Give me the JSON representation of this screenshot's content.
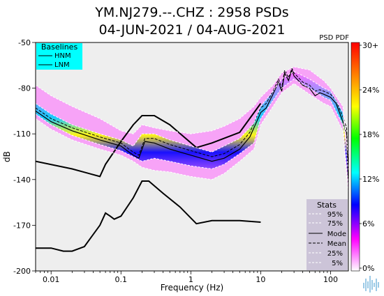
{
  "chart_data": {
    "type": "heatmap",
    "title_line1": "YM.NJ279.--.CHZ : 2958 PSDs",
    "title_line2": "04-JUN-2021 / 04-AUG-2021",
    "xlabel": "Frequency (Hz)",
    "ylabel": "dB",
    "x_scale": "log",
    "xlim": [
      0.006,
      180
    ],
    "ylim": [
      -200,
      -50
    ],
    "x_ticks": [
      0.01,
      0.1,
      1,
      10,
      100
    ],
    "x_tick_labels": [
      "0.01",
      "0.1",
      "1",
      "10",
      "100"
    ],
    "y_ticks": [
      -50,
      -80,
      -110,
      -140,
      -170,
      -200
    ],
    "y_tick_labels": [
      "-50",
      "-80",
      "-110",
      "-140",
      "-170",
      "-200"
    ],
    "psd_pdf_label": "PSD PDF",
    "colorbar": {
      "ticks": [
        "30+",
        "24%",
        "18%",
        "12%",
        "6%",
        "0%"
      ],
      "colors": [
        "#ff0000",
        "#ff7f00",
        "#ffff00",
        "#00ff00",
        "#00ffff",
        "#0000ff",
        "#ff00ff",
        "#ffffff"
      ]
    },
    "baselines": {
      "title": "Baselines",
      "items": [
        "HNM",
        "LNM"
      ]
    },
    "stats": {
      "title": "Stats",
      "items": [
        "95%",
        "75%",
        "Mode",
        "Mean",
        "25%",
        "5%"
      ]
    },
    "series": [
      {
        "name": "HNM",
        "x": [
          0.006,
          0.02,
          0.05,
          0.06,
          0.1,
          0.15,
          0.2,
          0.3,
          0.5,
          1.2,
          2.0,
          5.0,
          10.0
        ],
        "y": [
          -128,
          -133,
          -138,
          -130,
          -115,
          -104,
          -98,
          -98,
          -104,
          -119,
          -116,
          -109,
          -90
        ]
      },
      {
        "name": "LNM",
        "x": [
          0.006,
          0.01,
          0.015,
          0.02,
          0.03,
          0.05,
          0.06,
          0.07,
          0.08,
          0.1,
          0.15,
          0.2,
          0.25,
          0.4,
          0.7,
          1.2,
          2.0,
          5.0,
          10.0
        ],
        "y": [
          -185,
          -185,
          -187,
          -187,
          -184,
          -170,
          -162,
          -164,
          -166,
          -164,
          -152,
          -141,
          -141,
          -149,
          -158,
          -169,
          -167,
          -167,
          -168
        ]
      },
      {
        "name": "Mode",
        "x": [
          0.006,
          0.01,
          0.02,
          0.05,
          0.1,
          0.13,
          0.15,
          0.18,
          0.22,
          0.3,
          0.5,
          1,
          2,
          3,
          5,
          7,
          8,
          10,
          12,
          15,
          18,
          20,
          22,
          25,
          28,
          30,
          40,
          50,
          60,
          70,
          80,
          100,
          120,
          150,
          170,
          180
        ],
        "y": [
          -95,
          -102,
          -108,
          -114,
          -118,
          -122,
          -124,
          -126,
          -115,
          -116,
          -120,
          -124,
          -128,
          -126,
          -120,
          -112,
          -106,
          -96,
          -93,
          -84,
          -76,
          -82,
          -70,
          -75,
          -68,
          -72,
          -78,
          -80,
          -85,
          -83,
          -84,
          -86,
          -90,
          -102,
          -110,
          -143
        ]
      },
      {
        "name": "Mean",
        "x": [
          0.006,
          0.01,
          0.02,
          0.05,
          0.1,
          0.13,
          0.15,
          0.18,
          0.22,
          0.3,
          0.5,
          1,
          2,
          3,
          5,
          7,
          8,
          10,
          12,
          15,
          18,
          20,
          22,
          25,
          28,
          30,
          40,
          50,
          60,
          70,
          80,
          100,
          120,
          150,
          170,
          180
        ],
        "y": [
          -93,
          -100,
          -106,
          -112,
          -116,
          -120,
          -122,
          -124,
          -113,
          -113,
          -117,
          -121,
          -125,
          -123,
          -117,
          -109,
          -103,
          -93,
          -90,
          -82,
          -74,
          -80,
          -68,
          -73,
          -67,
          -70,
          -76,
          -78,
          -82,
          -81,
          -82,
          -84,
          -88,
          -99,
          -106,
          -140
        ]
      },
      {
        "name": "95%",
        "x": [
          0.006,
          0.01,
          0.02,
          0.05,
          0.1,
          0.15,
          0.2,
          0.3,
          0.5,
          1,
          2,
          3,
          5,
          8,
          10,
          15,
          20,
          30,
          50,
          80,
          100,
          150,
          180
        ],
        "y": [
          -78,
          -85,
          -92,
          -100,
          -108,
          -110,
          -104,
          -106,
          -108,
          -110,
          -108,
          -105,
          -100,
          -92,
          -86,
          -78,
          -70,
          -66,
          -68,
          -75,
          -80,
          -92,
          -125
        ]
      },
      {
        "name": "75%",
        "x": [
          0.006,
          0.01,
          0.02,
          0.05,
          0.1,
          0.15,
          0.2,
          0.3,
          0.5,
          1,
          2,
          3,
          5,
          8,
          10,
          15,
          20,
          30,
          50,
          80,
          100,
          150,
          180
        ],
        "y": [
          -90,
          -97,
          -104,
          -110,
          -114,
          -118,
          -110,
          -110,
          -114,
          -118,
          -122,
          -118,
          -113,
          -103,
          -92,
          -82,
          -74,
          -69,
          -74,
          -80,
          -82,
          -96,
          -135
        ]
      },
      {
        "name": "25%",
        "x": [
          0.006,
          0.01,
          0.02,
          0.05,
          0.1,
          0.15,
          0.2,
          0.3,
          0.5,
          1,
          2,
          3,
          5,
          8,
          10,
          15,
          20,
          30,
          50,
          80,
          100,
          150,
          180
        ],
        "y": [
          -97,
          -104,
          -111,
          -117,
          -121,
          -125,
          -128,
          -126,
          -128,
          -131,
          -133,
          -130,
          -123,
          -116,
          -100,
          -88,
          -80,
          -74,
          -80,
          -86,
          -88,
          -104,
          -145
        ]
      },
      {
        "name": "5%",
        "x": [
          0.006,
          0.01,
          0.02,
          0.05,
          0.1,
          0.15,
          0.2,
          0.3,
          0.5,
          1,
          2,
          3,
          5,
          8,
          10,
          15,
          20,
          30,
          50,
          80,
          100,
          150,
          180
        ],
        "y": [
          -100,
          -107,
          -114,
          -120,
          -124,
          -128,
          -132,
          -134,
          -135,
          -138,
          -140,
          -136,
          -128,
          -120,
          -104,
          -92,
          -83,
          -77,
          -84,
          -90,
          -92,
          -108,
          -150
        ]
      }
    ]
  }
}
